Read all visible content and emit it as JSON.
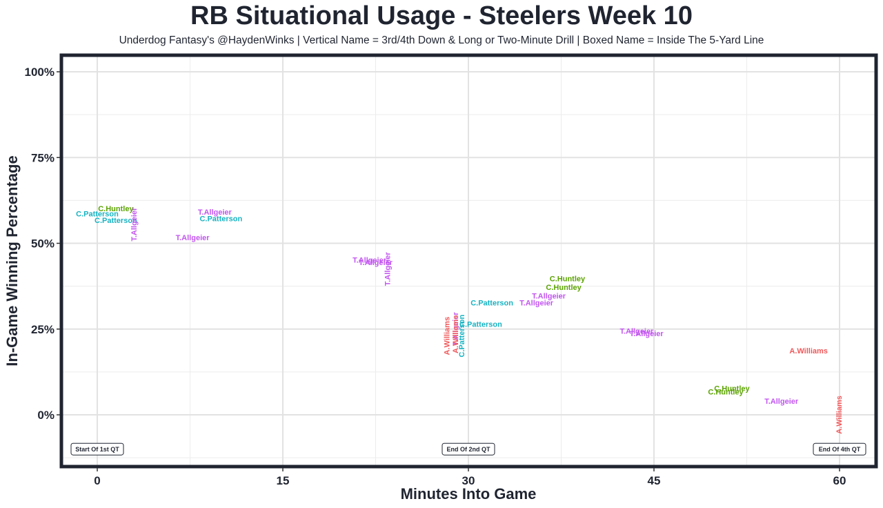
{
  "chart_data": {
    "type": "scatter",
    "title": "RB Situational Usage - Steelers Week 10",
    "subtitle": "Underdog Fantasy's @HaydenWinks | Vertical Name = 3rd/4th Down & Long or Two-Minute Drill | Boxed Name = Inside The 5-Yard Line",
    "xlabel": "Minutes Into Game",
    "ylabel": "In-Game Winning Percentage",
    "xlim": [
      -3,
      63
    ],
    "ylim": [
      -15,
      105
    ],
    "x_ticks": [
      0,
      15,
      30,
      45,
      60
    ],
    "x_tick_labels": [
      "0",
      "15",
      "30",
      "45",
      "60"
    ],
    "y_ticks": [
      0,
      25,
      50,
      75,
      100
    ],
    "y_tick_labels": [
      "0%",
      "25%",
      "50%",
      "75%",
      "100%"
    ],
    "grid": true,
    "colors": {
      "C.Huntley": "#5ba300",
      "C.Patterson": "#17b3c2",
      "T.Allgeier": "#c255f0",
      "A.Williams": "#f0585a"
    },
    "points": [
      {
        "name": "C.Huntley",
        "x": 1.5,
        "y": 60,
        "vertical": false
      },
      {
        "name": "C.Patterson",
        "x": 0,
        "y": 58.5,
        "vertical": false
      },
      {
        "name": "C.Patterson",
        "x": 1.5,
        "y": 56.5,
        "vertical": false
      },
      {
        "name": "T.Allgeier",
        "x": 3,
        "y": 55.5,
        "vertical": true
      },
      {
        "name": "T.Allgeier",
        "x": 9.5,
        "y": 59,
        "vertical": false
      },
      {
        "name": "C.Patterson",
        "x": 10,
        "y": 57,
        "vertical": false
      },
      {
        "name": "T.Allgeier",
        "x": 7.7,
        "y": 51.5,
        "vertical": false
      },
      {
        "name": "T.Allgeier",
        "x": 22,
        "y": 45,
        "vertical": false
      },
      {
        "name": "T.Allgeier",
        "x": 22.5,
        "y": 44.3,
        "vertical": false
      },
      {
        "name": "T.Allgeier",
        "x": 23.5,
        "y": 42.5,
        "vertical": true
      },
      {
        "name": "C.Huntley",
        "x": 38,
        "y": 39.5,
        "vertical": false
      },
      {
        "name": "C.Huntley",
        "x": 37.7,
        "y": 37,
        "vertical": false
      },
      {
        "name": "T.Allgeier",
        "x": 36.5,
        "y": 34.5,
        "vertical": false
      },
      {
        "name": "T.Allgeier",
        "x": 35.5,
        "y": 32.5,
        "vertical": false
      },
      {
        "name": "C.Patterson",
        "x": 31.9,
        "y": 32.5,
        "vertical": false
      },
      {
        "name": "C.Patterson",
        "x": 31,
        "y": 26.3,
        "vertical": false
      },
      {
        "name": "T.Allgeier",
        "x": 29,
        "y": 25,
        "vertical": true
      },
      {
        "name": "C.Patterson",
        "x": 29.5,
        "y": 23,
        "vertical": true
      },
      {
        "name": "A.Williams",
        "x": 29,
        "y": 23.5,
        "vertical": true
      },
      {
        "name": "A.Williams",
        "x": 28.3,
        "y": 23,
        "vertical": true
      },
      {
        "name": "T.Allgeier",
        "x": 43.6,
        "y": 24.2,
        "vertical": false
      },
      {
        "name": "T.Allgeier",
        "x": 44.4,
        "y": 23.5,
        "vertical": false
      },
      {
        "name": "A.Williams",
        "x": 57.5,
        "y": 18.5,
        "vertical": false
      },
      {
        "name": "C.Huntley",
        "x": 51.3,
        "y": 7.5,
        "vertical": false
      },
      {
        "name": "C.Huntley",
        "x": 50.8,
        "y": 6.5,
        "vertical": false
      },
      {
        "name": "T.Allgeier",
        "x": 55.3,
        "y": 3.8,
        "vertical": false
      },
      {
        "name": "A.Williams",
        "x": 60,
        "y": 0,
        "vertical": true
      }
    ],
    "annotations": [
      {
        "text": "Start Of 1st QT",
        "x": 0,
        "y": -10
      },
      {
        "text": "End Of 2nd QT",
        "x": 30,
        "y": -10
      },
      {
        "text": "End Of 4th QT",
        "x": 60,
        "y": -10
      }
    ]
  }
}
